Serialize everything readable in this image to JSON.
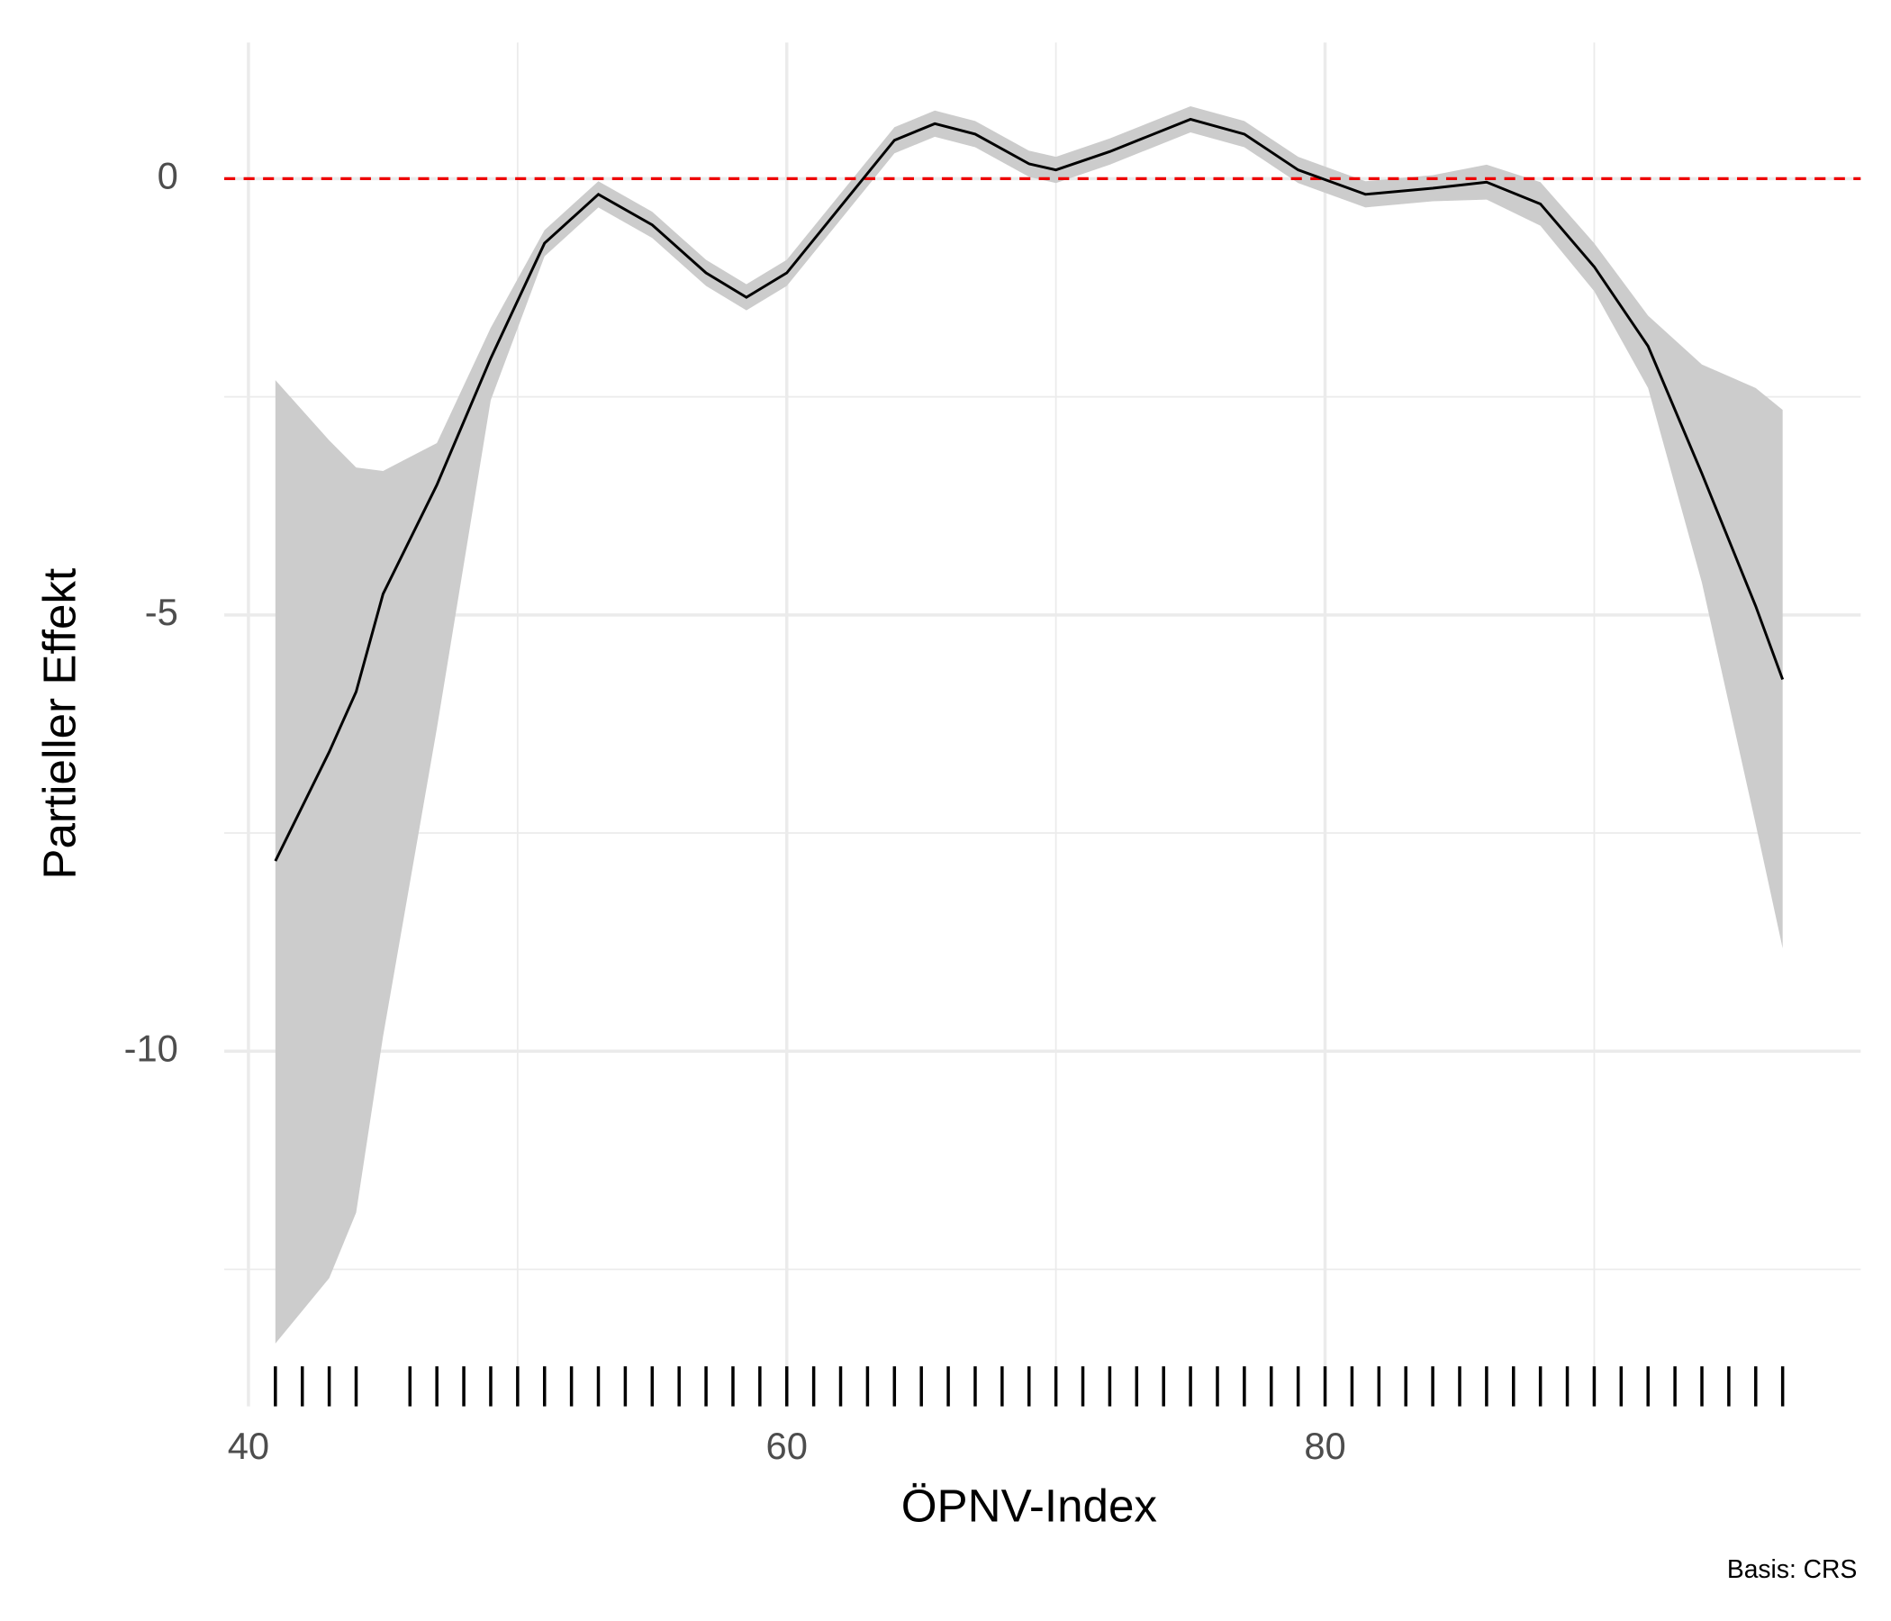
{
  "chart_data": {
    "type": "line",
    "x_label": "ÖPNV-Index",
    "y_label": "Partieller Effekt",
    "caption": "Basis: CRS",
    "x": [
      41,
      43,
      44,
      45,
      47,
      49,
      51,
      53,
      55,
      57,
      58.5,
      60,
      62,
      64,
      65.5,
      67,
      69,
      70,
      72,
      75,
      77,
      79,
      81.5,
      84,
      86,
      88,
      90,
      92,
      94,
      96,
      97
    ],
    "values": [
      -7.82,
      -6.57,
      -5.88,
      -4.76,
      -3.51,
      -2.06,
      -0.74,
      -0.18,
      -0.53,
      -1.08,
      -1.36,
      -1.08,
      -0.32,
      0.44,
      0.63,
      0.51,
      0.17,
      0.1,
      0.31,
      0.68,
      0.51,
      0.1,
      -0.18,
      -0.11,
      -0.04,
      -0.29,
      -1.01,
      -1.92,
      -3.38,
      -4.9,
      -5.74
    ],
    "upper": [
      -2.31,
      -3.0,
      -3.31,
      -3.35,
      -3.03,
      -1.71,
      -0.59,
      -0.03,
      -0.38,
      -0.93,
      -1.21,
      -0.93,
      -0.17,
      0.59,
      0.78,
      0.66,
      0.32,
      0.25,
      0.46,
      0.83,
      0.66,
      0.25,
      -0.03,
      0.04,
      0.16,
      -0.04,
      -0.74,
      -1.57,
      -2.13,
      -2.4,
      -2.65
    ],
    "lower": [
      -13.35,
      -12.6,
      -11.85,
      -9.83,
      -6.3,
      -2.54,
      -0.89,
      -0.33,
      -0.68,
      -1.23,
      -1.51,
      -1.23,
      -0.47,
      0.29,
      0.48,
      0.36,
      0.02,
      -0.05,
      0.16,
      0.53,
      0.36,
      -0.05,
      -0.33,
      -0.26,
      -0.24,
      -0.54,
      -1.29,
      -2.4,
      -4.63,
      -7.4,
      -8.82
    ],
    "line_color": "#000000",
    "band_color": "#cccccc",
    "reference_y": 0,
    "reference_color": "#ee0000",
    "rug": [
      41,
      42,
      43,
      44,
      46,
      47,
      48,
      49,
      50,
      51,
      52,
      53,
      54,
      55,
      56,
      57,
      58,
      59,
      60,
      61,
      62,
      63,
      64,
      65,
      66,
      67,
      68,
      69,
      70,
      71,
      72,
      73,
      74,
      75,
      76,
      77,
      78,
      79,
      80,
      81,
      82,
      83,
      84,
      85,
      86,
      87,
      88,
      89,
      90,
      91,
      92,
      93,
      94,
      95,
      96,
      97
    ],
    "xlim": [
      39.1,
      99.9
    ],
    "ylim": [
      -14.07,
      1.56
    ],
    "xticks": [
      40,
      60,
      80
    ],
    "yticks": [
      0,
      -5,
      -10
    ],
    "x_minor_ticks": [
      50,
      70,
      90
    ],
    "y_minor_ticks": [
      -2.5,
      -7.5,
      -12.5
    ],
    "grid": true
  }
}
